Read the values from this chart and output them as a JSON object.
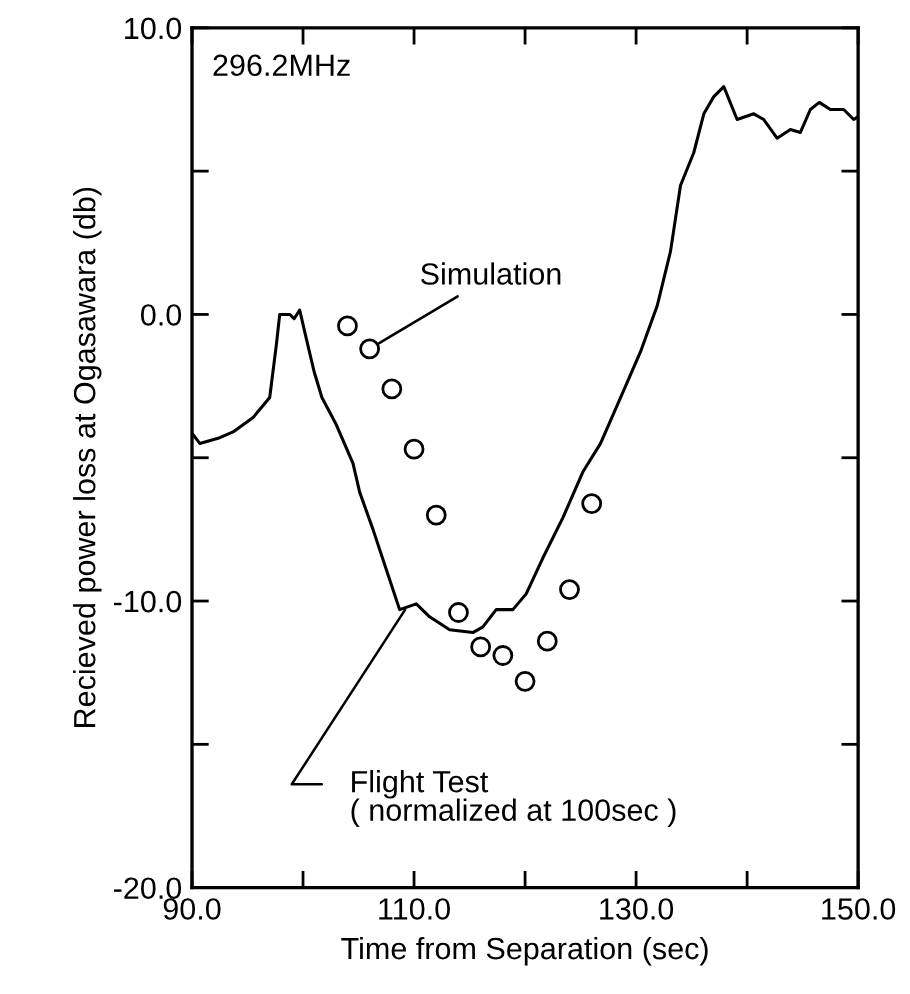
{
  "chart_data": {
    "type": "line",
    "xlabel": "Time from Separation (sec)",
    "ylabel": "Recieved power loss at Ogasawara (db)",
    "xlim": [
      90,
      150
    ],
    "ylim": [
      -20,
      10
    ],
    "xticks": [
      {
        "value": 90,
        "label": "90.0"
      },
      {
        "value": 100,
        "label": null
      },
      {
        "value": 110,
        "label": "110.0"
      },
      {
        "value": 120,
        "label": null
      },
      {
        "value": 130,
        "label": "130.0"
      },
      {
        "value": 140,
        "label": null
      },
      {
        "value": 150,
        "label": "150.0"
      }
    ],
    "yticks": [
      {
        "value": -20,
        "label": "-20.0"
      },
      {
        "value": -15,
        "label": null
      },
      {
        "value": -10,
        "label": "-10.0"
      },
      {
        "value": -5,
        "label": null
      },
      {
        "value": 0,
        "label": "0.0"
      },
      {
        "value": 5,
        "label": null
      },
      {
        "value": 10,
        "label": "10.0"
      }
    ],
    "grid": false,
    "series": [
      {
        "color": "#000000",
        "marker": "none",
        "line_style": "solid",
        "x": [
          90.1,
          90.7,
          92.5,
          93.7,
          95.5,
          97.0,
          97.6,
          97.9,
          98.8,
          99.2,
          99.7,
          100.3,
          101.0,
          101.7,
          103.0,
          104.5,
          105.1,
          106.3,
          107.5,
          108.7,
          110.2,
          111.4,
          113.2,
          115.3,
          116.2,
          117.4,
          118.9,
          120.1,
          121.6,
          123.4,
          125.2,
          126.8,
          128.6,
          130.4,
          131.9,
          133.1,
          134.0,
          135.2,
          136.1,
          137.0,
          137.9,
          139.1,
          140.6,
          141.5,
          142.7,
          143.9,
          144.8,
          145.7,
          146.5,
          147.5,
          148.7,
          149.6,
          150.0
        ],
        "values": [
          -4.2,
          -4.5,
          -4.3,
          -4.1,
          -3.6,
          -2.9,
          -1.05,
          0.0,
          0.0,
          -0.15,
          0.15,
          -0.85,
          -2.0,
          -2.9,
          -3.85,
          -5.2,
          -6.2,
          -7.5,
          -8.9,
          -10.3,
          -10.1,
          -10.55,
          -11.0,
          -11.1,
          -10.9,
          -10.3,
          -10.3,
          -9.75,
          -8.5,
          -7.1,
          -5.5,
          -4.5,
          -2.9,
          -1.3,
          0.3,
          2.2,
          4.5,
          5.65,
          7.0,
          7.6,
          7.95,
          6.8,
          7.0,
          6.8,
          6.15,
          6.45,
          6.35,
          7.15,
          7.4,
          7.15,
          7.15,
          6.8,
          6.9
        ]
      },
      {
        "type": "scatter",
        "color": "#000000",
        "marker": "circle",
        "x": [
          104,
          106,
          108,
          110,
          112,
          114,
          116,
          118,
          120,
          122,
          124,
          126
        ],
        "values": [
          -0.4,
          -1.2,
          -2.6,
          -4.7,
          -7.0,
          -10.4,
          -11.6,
          -11.9,
          -12.8,
          -11.4,
          -9.6,
          -6.6
        ]
      }
    ],
    "annotations": [
      "296.2MHz",
      {
        "text": "Simulation",
        "x": 106,
        "y": -1.2
      },
      {
        "text": "Flight Test\n( normalized at 100sec )",
        "x": 109.2,
        "y": -10.3
      }
    ]
  }
}
